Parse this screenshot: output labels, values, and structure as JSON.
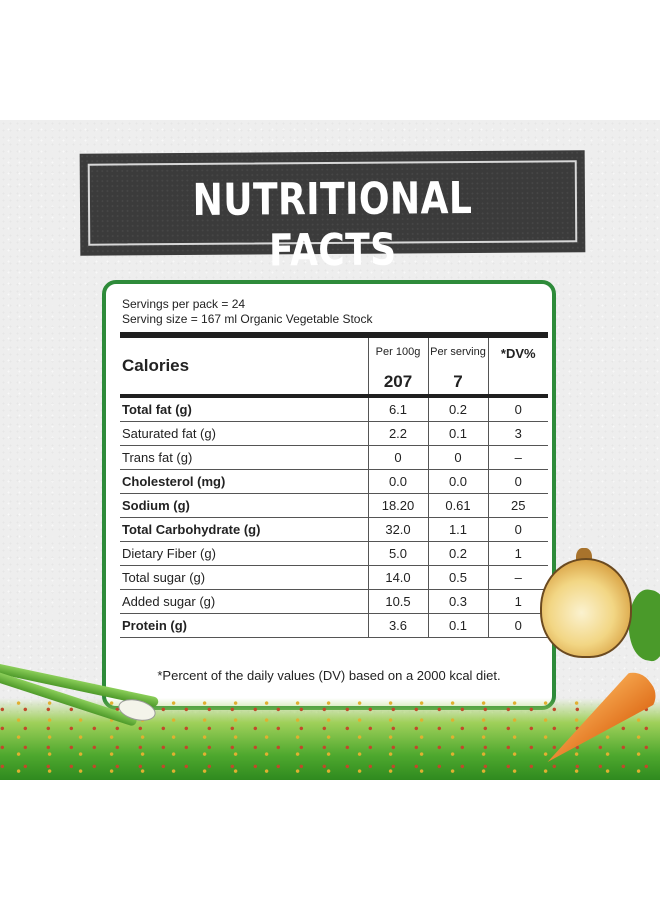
{
  "title": "NUTRITIONAL FACTS",
  "servings_per_pack": "Servings per pack  = 24",
  "serving_size": "Serving size = 167 ml Organic Vegetable Stock",
  "columns": {
    "per100": "Per 100g",
    "perserving": "Per serving",
    "dv": "*DV%"
  },
  "calories": {
    "label": "Calories",
    "per100": "207",
    "perserving": "7"
  },
  "rows": [
    {
      "name": "Total fat (g)",
      "per100": "6.1",
      "perserving": "0.2",
      "dv": "0",
      "bold": true
    },
    {
      "name": "Saturated fat (g)",
      "per100": "2.2",
      "perserving": "0.1",
      "dv": "3",
      "bold": false
    },
    {
      "name": "Trans fat (g)",
      "per100": "0",
      "perserving": "0",
      "dv": "–",
      "bold": false
    },
    {
      "name": "Cholesterol (mg)",
      "per100": "0.0",
      "perserving": "0.0",
      "dv": "0",
      "bold": true
    },
    {
      "name": "Sodium (g)",
      "per100": "18.20",
      "perserving": "0.61",
      "dv": "25",
      "bold": true
    },
    {
      "name": "Total Carbohydrate (g)",
      "per100": "32.0",
      "perserving": "1.1",
      "dv": "0",
      "bold": true
    },
    {
      "name": "Dietary Fiber (g)",
      "per100": "5.0",
      "perserving": "0.2",
      "dv": "1",
      "bold": false
    },
    {
      "name": "Total sugar (g)",
      "per100": "14.0",
      "perserving": "0.5",
      "dv": "–",
      "bold": false
    },
    {
      "name": "Added sugar (g)",
      "per100": "10.5",
      "perserving": "0.3",
      "dv": "1",
      "bold": false
    },
    {
      "name": "Protein (g)",
      "per100": "3.6",
      "perserving": "0.1",
      "dv": "0",
      "bold": true
    }
  ],
  "footnote": "*Percent of the daily values (DV) based on a 2000 kcal diet.",
  "colors": {
    "accent": "#2e8b3a",
    "banner": "#3b3b3b"
  },
  "decorations": [
    "onion-illustration",
    "carrot-illustration",
    "scallion-illustration",
    "grass-illustration"
  ]
}
